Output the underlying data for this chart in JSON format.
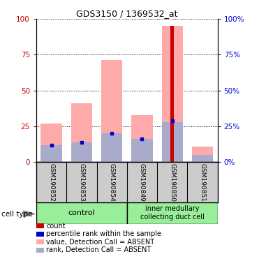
{
  "title": "GDS3150 / 1369532_at",
  "samples": [
    "GSM190852",
    "GSM190853",
    "GSM190854",
    "GSM190849",
    "GSM190850",
    "GSM190851"
  ],
  "pink_bar_heights": [
    27,
    41,
    71,
    33,
    95,
    11
  ],
  "light_blue_bar_heights": [
    12,
    14,
    20,
    16,
    28,
    5
  ],
  "red_bar_heights": [
    0,
    0,
    0,
    0,
    95,
    0
  ],
  "blue_marker_heights": [
    12,
    14,
    20,
    16,
    29,
    0
  ],
  "ylim": [
    0,
    100
  ],
  "yticks": [
    0,
    25,
    50,
    75,
    100
  ],
  "left_ytick_color": "#cc0000",
  "right_ytick_color": "#0000cc",
  "bg_color": "#ffffff",
  "pink_color": "#ffaaaa",
  "light_blue_color": "#aaaacc",
  "red_color": "#cc0000",
  "blue_color": "#0000cc",
  "group_bg_color": "#99ee99",
  "sample_bg_color": "#cccccc",
  "legend_items": [
    {
      "color": "#cc0000",
      "label": "count"
    },
    {
      "color": "#0000cc",
      "label": "percentile rank within the sample"
    },
    {
      "color": "#ffaaaa",
      "label": "value, Detection Call = ABSENT"
    },
    {
      "color": "#aaaacc",
      "label": "rank, Detection Call = ABSENT"
    }
  ]
}
